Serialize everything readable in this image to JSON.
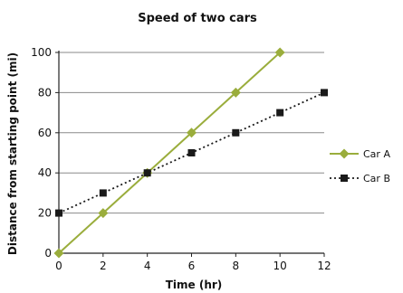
{
  "chart_data": {
    "type": "line",
    "title": "Speed of two cars",
    "xlabel": "Time (hr)",
    "ylabel": "Distance from starting point (mi)",
    "xlim": [
      0,
      12
    ],
    "ylim": [
      0,
      100
    ],
    "x_ticks": [
      0,
      2,
      4,
      6,
      8,
      10,
      12
    ],
    "y_ticks": [
      0,
      20,
      40,
      60,
      80,
      100
    ],
    "grid": "horizontal",
    "legend_position": "right",
    "series": [
      {
        "name": "Car A",
        "color": "#9aad3c",
        "line_style": "solid",
        "marker": "diamond",
        "x": [
          0,
          2,
          4,
          6,
          8,
          10
        ],
        "y": [
          0,
          20,
          40,
          60,
          80,
          100
        ]
      },
      {
        "name": "Car B",
        "color": "#1a1a1a",
        "line_style": "dotted",
        "marker": "square",
        "x": [
          0,
          2,
          4,
          6,
          8,
          10,
          12
        ],
        "y": [
          20,
          30,
          40,
          50,
          60,
          70,
          80
        ]
      }
    ]
  }
}
